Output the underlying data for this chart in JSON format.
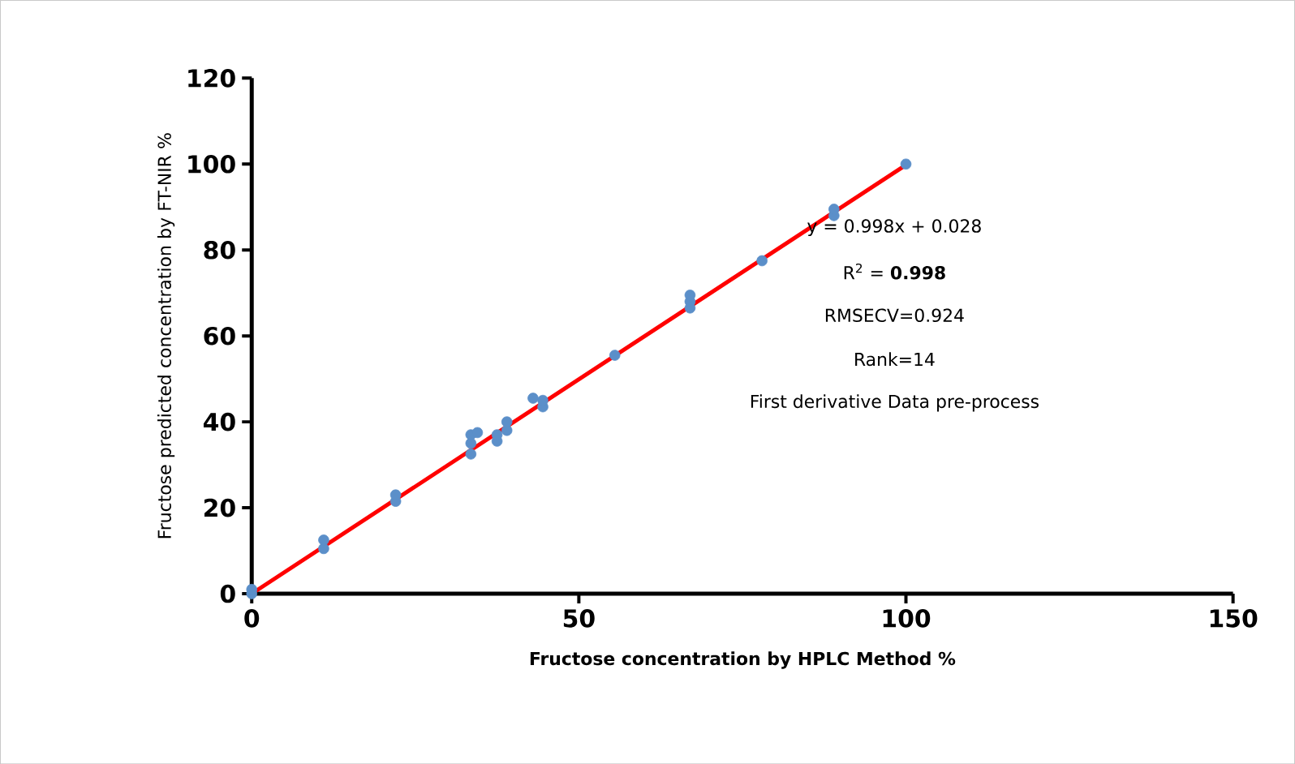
{
  "chart_data": {
    "type": "scatter",
    "xlabel": "Fructose concentration by HPLC Method  %",
    "ylabel": "Fructose predicted concentration by FT-NIR %",
    "xlim": [
      0,
      150
    ],
    "xticks": [
      0,
      50,
      100,
      150
    ],
    "ylim": [
      0,
      120
    ],
    "yticks": [
      0,
      20,
      40,
      60,
      80,
      100,
      120
    ],
    "grid": false,
    "marker": "circle",
    "series": [
      {
        "color": "#5b8fc9",
        "x": [
          0,
          0,
          11,
          11,
          22,
          22,
          33.5,
          33.5,
          33.5,
          34.5,
          37.5,
          37.5,
          39,
          39,
          43,
          44.5,
          44.5,
          55.5,
          67,
          67,
          67,
          78,
          89,
          89,
          100
        ],
        "values": [
          0,
          1,
          10.5,
          12.5,
          21.5,
          23,
          32.5,
          35,
          37,
          37.5,
          35.5,
          37,
          38,
          40,
          45.5,
          43.5,
          45,
          55.5,
          66.5,
          68,
          69.5,
          77.5,
          88,
          89.5,
          100
        ]
      },
      {
        "type": "line",
        "color": "#ff0000",
        "marker": "none",
        "x": [
          0,
          100
        ],
        "values": [
          0,
          99.8
        ]
      }
    ],
    "annotations": [
      "y = 0.998x + 0.028",
      "R$^{2}$ = **0.998**",
      "RMSECV=0.924",
      "Rank=14",
      "First derivative Data pre-process"
    ]
  }
}
